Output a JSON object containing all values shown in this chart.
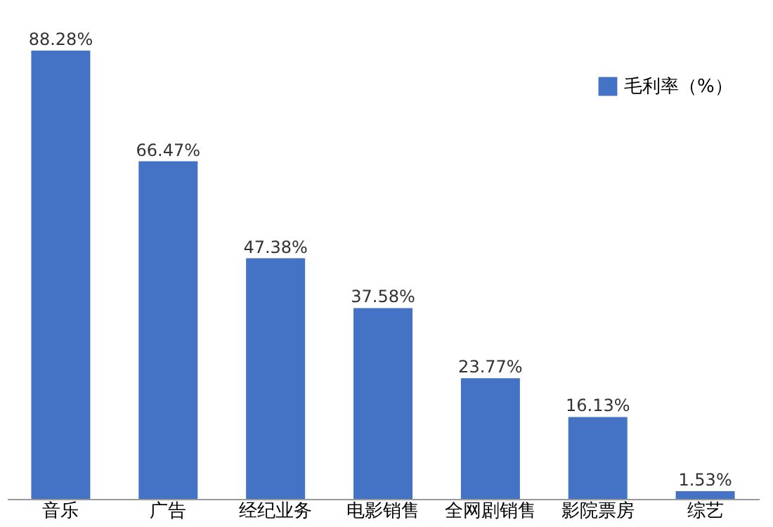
{
  "chart_data": {
    "type": "bar",
    "categories": [
      "音乐",
      "广告",
      "经纪业务",
      "电影销售",
      "全网剧销售",
      "影院票房",
      "综艺"
    ],
    "series": [
      {
        "name": "毛利率（%）",
        "color": "#4472c4",
        "values": [
          88.28,
          66.47,
          47.38,
          37.58,
          23.77,
          16.13,
          1.53
        ],
        "value_labels": [
          "88.28%",
          "66.47%",
          "47.38%",
          "37.58%",
          "23.77%",
          "16.13%",
          "1.53%"
        ]
      }
    ],
    "legend": "top right",
    "grid": false
  }
}
